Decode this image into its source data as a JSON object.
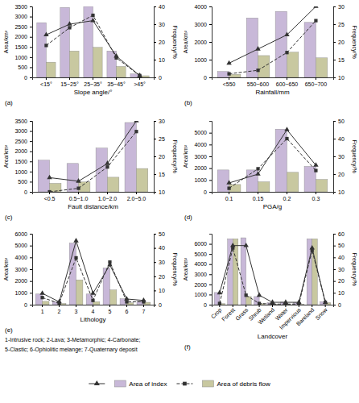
{
  "chart_data": [
    {
      "type": "bar",
      "title": "(a)",
      "xlabel": "Slope angle/°",
      "ylabel": "Area/km²",
      "y2label": "Frequency/%",
      "categories": [
        "<15°",
        "15~25°",
        "25~35°",
        "35~45°",
        ">45°"
      ],
      "ylim": [
        0,
        3500
      ],
      "yticks": [
        0,
        500,
        1000,
        1500,
        2000,
        2500,
        3000,
        3500
      ],
      "y2lim": [
        0,
        40
      ],
      "y2ticks": [
        0,
        10,
        20,
        30,
        40
      ],
      "series": [
        {
          "name": "Area of index",
          "type": "bar",
          "color": "#c8b8d8",
          "values": [
            2700,
            3450,
            3500,
            1300,
            170
          ]
        },
        {
          "name": "Area of debris flow",
          "type": "bar",
          "color": "#c8c8a0",
          "values": [
            750,
            1300,
            1480,
            540,
            80
          ]
        },
        {
          "type": "line",
          "axis": "y2",
          "color": "#333333",
          "line_style": "solid",
          "marker": "triangle",
          "values": [
            24,
            30,
            32,
            12,
            1
          ]
        },
        {
          "type": "line",
          "axis": "y2",
          "color": "#333333",
          "line_style": "dashed",
          "marker": "square",
          "values": [
            18,
            28,
            35,
            11,
            1
          ]
        }
      ]
    },
    {
      "type": "bar",
      "title": "(b)",
      "xlabel": "Rainfall/mm",
      "ylabel": "Area/km²",
      "y2label": "Frequency/%",
      "categories": [
        "<550",
        "550~600",
        "600~650",
        "650~700"
      ],
      "ylim": [
        0,
        4000
      ],
      "yticks": [
        0,
        1000,
        2000,
        3000,
        4000
      ],
      "y2lim": [
        10,
        30
      ],
      "y2ticks": [
        10,
        15,
        20,
        25,
        30
      ],
      "series": [
        {
          "name": "Area of index",
          "type": "bar",
          "color": "#c8b8d8",
          "values": [
            330,
            3350,
            3720,
            3100
          ]
        },
        {
          "name": "Area of debris flow",
          "type": "bar",
          "color": "#c8c8a0",
          "values": [
            170,
            1230,
            1420,
            1100
          ]
        },
        {
          "type": "line",
          "axis": "y2",
          "color": "#333333",
          "line_style": "solid",
          "marker": "triangle",
          "values": [
            14,
            18,
            22,
            30
          ]
        },
        {
          "type": "line",
          "axis": "y2",
          "color": "#333333",
          "line_style": "dashed",
          "marker": "square",
          "values": [
            11,
            12,
            17,
            26
          ]
        }
      ]
    },
    {
      "type": "bar",
      "title": "(c)",
      "xlabel": "Fault distance/km",
      "ylabel": "Area/km²",
      "y2label": "Frequency/%",
      "categories": [
        "<0.5",
        "0.5~1.0",
        "1.0~2.0",
        "2.0~5.0"
      ],
      "ylim": [
        0,
        3500
      ],
      "yticks": [
        0,
        500,
        1000,
        1500,
        2000,
        2500,
        3000,
        3500
      ],
      "y2lim": [
        10,
        30
      ],
      "y2ticks": [
        10,
        15,
        20,
        25,
        30
      ],
      "series": [
        {
          "name": "Area of index",
          "type": "bar",
          "color": "#c8b8d8",
          "values": [
            1560,
            1400,
            2160,
            3420
          ]
        },
        {
          "name": "Area of debris flow",
          "type": "bar",
          "color": "#c8c8a0",
          "values": [
            420,
            490,
            720,
            1150
          ]
        },
        {
          "type": "line",
          "axis": "y2",
          "color": "#333333",
          "line_style": "solid",
          "marker": "triangle",
          "values": [
            14,
            13,
            18,
            30
          ]
        },
        {
          "type": "line",
          "axis": "y2",
          "color": "#333333",
          "line_style": "dashed",
          "marker": "square",
          "values": [
            10,
            11,
            17,
            27
          ]
        }
      ]
    },
    {
      "type": "bar",
      "title": "(d)",
      "xlabel": "PGA/g",
      "ylabel": "Area/km²",
      "y2label": "Frequency/%",
      "categories": [
        "0.1",
        "0.15",
        "0.2",
        "0.3"
      ],
      "ylim": [
        0,
        6000
      ],
      "yticks": [
        0,
        1000,
        2000,
        3000,
        4000,
        5000
      ],
      "y2lim": [
        10,
        50
      ],
      "y2ticks": [
        10,
        20,
        30,
        40,
        50
      ],
      "series": [
        {
          "name": "Area of index",
          "type": "bar",
          "color": "#c8b8d8",
          "values": [
            1850,
            1850,
            5300,
            2150
          ]
        },
        {
          "name": "Area of debris flow",
          "type": "bar",
          "color": "#c8c8a0",
          "values": [
            620,
            850,
            1650,
            1050
          ]
        },
        {
          "type": "line",
          "axis": "y2",
          "color": "#333333",
          "line_style": "solid",
          "marker": "triangle",
          "values": [
            15,
            20,
            45,
            25
          ]
        },
        {
          "type": "line",
          "axis": "y2",
          "color": "#333333",
          "line_style": "dashed",
          "marker": "square",
          "values": [
            12,
            23,
            40,
            22
          ]
        }
      ]
    },
    {
      "type": "bar",
      "title": "(e)",
      "xlabel": "Lithology",
      "ylabel": "Area/km²",
      "y2label": "Frequency/%",
      "categories": [
        "1",
        "2",
        "3",
        "4",
        "5",
        "6",
        "7"
      ],
      "ylim": [
        0,
        6000
      ],
      "yticks": [
        0,
        1000,
        2000,
        3000,
        4000,
        5000,
        6000
      ],
      "y2lim": [
        0,
        50
      ],
      "y2ticks": [
        0,
        10,
        20,
        30,
        40,
        50
      ],
      "annotations": [
        "1-Intrusive rock; 2-Lava; 3-Metamorphic; 4-Carbonate;",
        "5-Clastic; 6-Ophiolitic melange; 7-Quaternary deposit"
      ],
      "series": [
        {
          "name": "Area of index",
          "type": "bar",
          "color": "#c8b8d8",
          "values": [
            900,
            250,
            5200,
            900,
            3100,
            500,
            300
          ]
        },
        {
          "name": "Area of debris flow",
          "type": "bar",
          "color": "#c8c8a0",
          "values": [
            280,
            100,
            2100,
            250,
            1250,
            160,
            200
          ]
        },
        {
          "type": "line",
          "axis": "y2",
          "color": "#333333",
          "line_style": "solid",
          "marker": "triangle",
          "values": [
            8,
            2,
            45,
            8,
            28,
            4,
            3
          ]
        },
        {
          "type": "line",
          "axis": "y2",
          "color": "#333333",
          "line_style": "dashed",
          "marker": "square",
          "values": [
            5,
            1,
            33,
            3,
            30,
            2,
            2
          ]
        }
      ]
    },
    {
      "type": "bar",
      "title": "(f)",
      "xlabel": "Landcover",
      "ylabel": "Area/km²",
      "y2label": "Frequency/%",
      "categories": [
        "Crop",
        "Forest",
        "Grass",
        "Shrub",
        "Wetland",
        "Water",
        "Impervious",
        "Bareland",
        "Snow"
      ],
      "ylim": [
        0,
        7000
      ],
      "yticks": [
        0,
        1000,
        2000,
        3000,
        4000,
        5000,
        6000
      ],
      "y2lim": [
        0,
        60
      ],
      "y2ticks": [
        0,
        10,
        20,
        30,
        40,
        50,
        60
      ],
      "legend": "bottom",
      "series": [
        {
          "name": "Area of index",
          "type": "bar",
          "color": "#c8b8d8",
          "values": [
            1200,
            6500,
            6600,
            800,
            200,
            250,
            200,
            6500,
            300
          ]
        },
        {
          "name": "Area of debris flow",
          "type": "bar",
          "color": "#c8c8a0",
          "values": [
            100,
            6500,
            800,
            100,
            50,
            50,
            50,
            6500,
            200
          ]
        },
        {
          "type": "line",
          "axis": "y2",
          "color": "#333333",
          "line_style": "solid",
          "marker": "triangle",
          "values": [
            10,
            50,
            50,
            8,
            2,
            2,
            2,
            48,
            2
          ]
        },
        {
          "type": "line",
          "axis": "y2",
          "color": "#333333",
          "line_style": "dashed",
          "marker": "square",
          "values": [
            1,
            48,
            8,
            1,
            0.5,
            0.5,
            0.5,
            46,
            2
          ]
        }
      ]
    }
  ]
}
